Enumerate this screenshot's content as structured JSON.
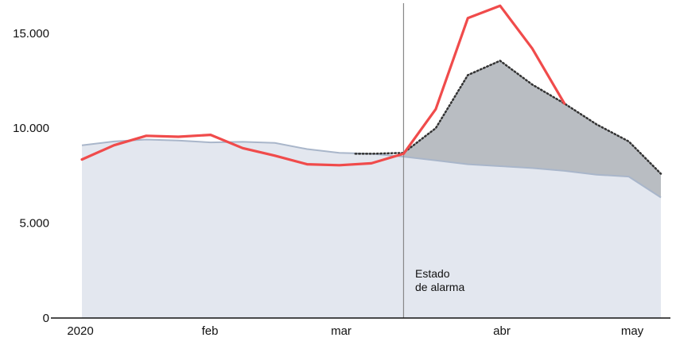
{
  "chart_data": {
    "type": "area",
    "x_ticks": [
      "2020",
      "feb",
      "mar",
      "abr",
      "may"
    ],
    "y_ticks": [
      "0",
      "5.000",
      "10.000",
      "15.000"
    ],
    "ylim": [
      0,
      16500
    ],
    "grid": false,
    "colors": {
      "baseline_fill": "#e3e7ef",
      "baseline_line": "#a9b6ca",
      "excess_fill": "#b9bdc2",
      "expected_line": "#333333",
      "observed_line": "#f04b4b",
      "event_line": "#888888",
      "axis": "#111111"
    },
    "series": [
      {
        "role": "baseline",
        "x": [
          0,
          1,
          2,
          3,
          4,
          5,
          6,
          7,
          8,
          9,
          10,
          11,
          12,
          13,
          14,
          15,
          16,
          17,
          18
        ],
        "values": [
          9100,
          9300,
          9400,
          9350,
          9250,
          9280,
          9220,
          8900,
          8700,
          8650,
          8500,
          8300,
          8100,
          8000,
          7900,
          7750,
          7550,
          7450,
          6350
        ]
      },
      {
        "role": "expected",
        "x": [
          8.5,
          9,
          10,
          11,
          12,
          13,
          14,
          15,
          16,
          17,
          18
        ],
        "values": [
          8650,
          8650,
          8700,
          10000,
          12800,
          13550,
          12300,
          11300,
          10200,
          9300,
          7600
        ]
      },
      {
        "role": "observed",
        "x": [
          0,
          1,
          2,
          3,
          4,
          5,
          6,
          7,
          8,
          9,
          10,
          11,
          12,
          13,
          14,
          15
        ],
        "values": [
          8350,
          9100,
          9600,
          9550,
          9650,
          8950,
          8550,
          8100,
          8050,
          8150,
          8650,
          11000,
          15800,
          16450,
          14200,
          11300
        ]
      }
    ],
    "event": {
      "x": 10,
      "label_line1": "Estado",
      "label_line2": "de alarma"
    }
  }
}
